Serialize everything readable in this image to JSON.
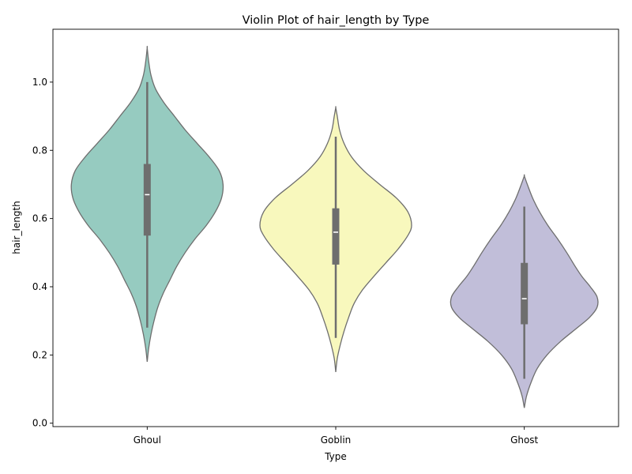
{
  "chart_data": {
    "type": "violin",
    "title": "Violin Plot of hair_length by Type",
    "xlabel": "Type",
    "ylabel": "hair_length",
    "ylim": [
      -0.01,
      1.155
    ],
    "yticks": [
      0.0,
      0.2,
      0.4,
      0.6,
      0.8,
      1.0
    ],
    "ytick_labels": [
      "0.0",
      "0.2",
      "0.4",
      "0.6",
      "0.8",
      "1.0"
    ],
    "grid": false,
    "categories": [
      "Ghoul",
      "Goblin",
      "Ghost"
    ],
    "series": [
      {
        "category": "Ghoul",
        "color": "#96cbc0",
        "kde_extent": [
          0.18,
          1.1
        ],
        "min": 0.28,
        "q1": 0.55,
        "median": 0.67,
        "q3": 0.76,
        "max": 1.0,
        "profile": [
          [
            0.18,
            0.0
          ],
          [
            0.22,
            0.02
          ],
          [
            0.26,
            0.05
          ],
          [
            0.3,
            0.09
          ],
          [
            0.34,
            0.14
          ],
          [
            0.38,
            0.21
          ],
          [
            0.42,
            0.3
          ],
          [
            0.46,
            0.39
          ],
          [
            0.5,
            0.5
          ],
          [
            0.54,
            0.63
          ],
          [
            0.58,
            0.78
          ],
          [
            0.62,
            0.9
          ],
          [
            0.66,
            0.98
          ],
          [
            0.7,
            1.0
          ],
          [
            0.74,
            0.95
          ],
          [
            0.78,
            0.82
          ],
          [
            0.82,
            0.66
          ],
          [
            0.86,
            0.5
          ],
          [
            0.9,
            0.36
          ],
          [
            0.94,
            0.22
          ],
          [
            0.98,
            0.11
          ],
          [
            1.02,
            0.05
          ],
          [
            1.06,
            0.02
          ],
          [
            1.1,
            0.0
          ]
        ]
      },
      {
        "category": "Goblin",
        "color": "#f8f8bd",
        "kde_extent": [
          0.15,
          0.925
        ],
        "min": 0.25,
        "q1": 0.465,
        "median": 0.56,
        "q3": 0.63,
        "max": 0.84,
        "profile": [
          [
            0.15,
            0.0
          ],
          [
            0.19,
            0.02
          ],
          [
            0.23,
            0.06
          ],
          [
            0.27,
            0.11
          ],
          [
            0.31,
            0.17
          ],
          [
            0.35,
            0.24
          ],
          [
            0.39,
            0.35
          ],
          [
            0.43,
            0.5
          ],
          [
            0.47,
            0.66
          ],
          [
            0.51,
            0.82
          ],
          [
            0.55,
            0.95
          ],
          [
            0.58,
            1.0
          ],
          [
            0.62,
            0.95
          ],
          [
            0.66,
            0.8
          ],
          [
            0.7,
            0.58
          ],
          [
            0.74,
            0.37
          ],
          [
            0.78,
            0.21
          ],
          [
            0.82,
            0.11
          ],
          [
            0.86,
            0.05
          ],
          [
            0.9,
            0.02
          ],
          [
            0.925,
            0.0
          ]
        ]
      },
      {
        "category": "Ghost",
        "color": "#c1bed9",
        "kde_extent": [
          0.045,
          0.725
        ],
        "min": 0.13,
        "q1": 0.29,
        "median": 0.365,
        "q3": 0.47,
        "max": 0.635,
        "profile": [
          [
            0.045,
            0.0
          ],
          [
            0.08,
            0.03
          ],
          [
            0.12,
            0.09
          ],
          [
            0.16,
            0.17
          ],
          [
            0.2,
            0.3
          ],
          [
            0.24,
            0.48
          ],
          [
            0.28,
            0.7
          ],
          [
            0.31,
            0.86
          ],
          [
            0.34,
            0.96
          ],
          [
            0.37,
            0.96
          ],
          [
            0.4,
            0.87
          ],
          [
            0.43,
            0.76
          ],
          [
            0.46,
            0.67
          ],
          [
            0.5,
            0.56
          ],
          [
            0.54,
            0.44
          ],
          [
            0.58,
            0.31
          ],
          [
            0.62,
            0.2
          ],
          [
            0.66,
            0.11
          ],
          [
            0.7,
            0.04
          ],
          [
            0.725,
            0.0
          ]
        ]
      }
    ]
  }
}
